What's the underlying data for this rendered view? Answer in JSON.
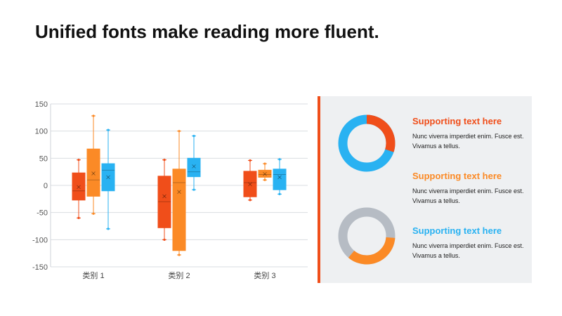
{
  "title": "Unified fonts make reading more fluent.",
  "colors": {
    "red": "#f04e1a",
    "orange": "#fb8a26",
    "blue": "#29b2f2",
    "gray": "#b6bcc4"
  },
  "chart_data": {
    "type": "box",
    "categories": [
      "类别 1",
      "类别 2",
      "类别 3"
    ],
    "ylim": [
      -150,
      150
    ],
    "yticks": [
      "150",
      "100",
      "50",
      "0",
      "-50",
      "-100",
      "-150"
    ],
    "ytick_values": [
      150,
      100,
      50,
      0,
      -50,
      -100,
      -150
    ],
    "grid": true,
    "series": [
      {
        "color": "#f04e1a",
        "boxes": [
          {
            "min": -60,
            "q1": -27,
            "median": -10,
            "q3": 23,
            "max": 47,
            "mean": -3
          },
          {
            "min": -100,
            "q1": -78,
            "median": -30,
            "q3": 17,
            "max": 47,
            "mean": -20
          },
          {
            "min": -27,
            "q1": -21,
            "median": 5,
            "q3": 26,
            "max": 46,
            "mean": 2
          }
        ]
      },
      {
        "color": "#fb8a26",
        "boxes": [
          {
            "min": -52,
            "q1": -20,
            "median": 10,
            "q3": 67,
            "max": 128,
            "mean": 22
          },
          {
            "min": -128,
            "q1": -120,
            "median": 5,
            "q3": 30,
            "max": 100,
            "mean": -12
          },
          {
            "min": 10,
            "q1": 15,
            "median": 20,
            "q3": 28,
            "max": 40,
            "mean": 21
          }
        ]
      },
      {
        "color": "#29b2f2",
        "boxes": [
          {
            "min": -80,
            "q1": -10,
            "median": 28,
            "q3": 40,
            "max": 102,
            "mean": 15
          },
          {
            "min": -8,
            "q1": 16,
            "median": 25,
            "q3": 50,
            "max": 91,
            "mean": 35
          },
          {
            "min": -16,
            "q1": -8,
            "median": 20,
            "q3": 30,
            "max": 48,
            "mean": 15
          }
        ]
      }
    ]
  },
  "panel": {
    "items": [
      {
        "title": "Supporting text here",
        "body": "Nunc viverra imperdiet enim. Fusce est. Vivamus a tellus.",
        "color": "#f04e1a"
      },
      {
        "title": "Supporting text here",
        "body": "Nunc viverra imperdiet enim. Fusce est. Vivamus a tellus.",
        "color": "#fb8a26"
      },
      {
        "title": "Supporting text here",
        "body": "Nunc viverra imperdiet enim. Fusce est. Vivamus a tellus.",
        "color": "#29b2f2"
      }
    ],
    "donuts": [
      {
        "value": 0.3,
        "fill": "#f04e1a",
        "track": "#29b2f2"
      },
      {
        "value": 0.35,
        "fill": "#fb8a26",
        "track": "#b6bcc4"
      }
    ]
  }
}
